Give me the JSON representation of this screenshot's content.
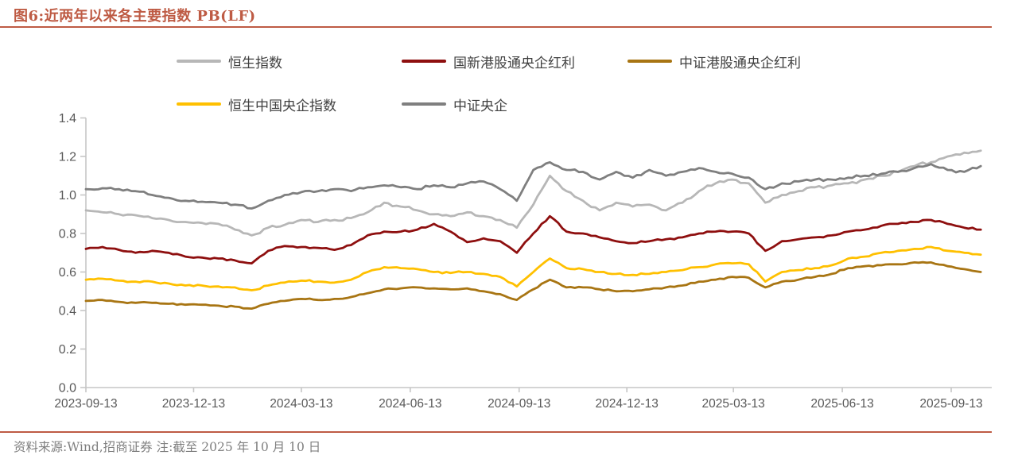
{
  "title": "图6:近两年以来各主要指数 PB(LF)",
  "source_note": "资料来源:Wind,招商证券  注:截至 2025 年 10 月 10 日",
  "colors": {
    "accent": "#BE5B44",
    "axis_line": "#C6C6C6",
    "tick_label": "#595959",
    "legend_text": "#3F3F3F",
    "footer_text": "#7F7F7F"
  },
  "chart_data": {
    "type": "line",
    "title": "近两年以来各主要指数 PB(LF)",
    "xlabel": "",
    "ylabel": "",
    "ylim": [
      0.0,
      1.4
    ],
    "y_ticks": [
      0.0,
      0.2,
      0.4,
      0.6,
      0.8,
      1.0,
      1.2,
      1.4
    ],
    "grid": false,
    "legend_position": "top",
    "x_unit": "days since 2023-09-13",
    "x_range_days": [
      0,
      756
    ],
    "x_ticks": [
      {
        "t": 0,
        "label": "2023-09-13"
      },
      {
        "t": 91,
        "label": "2023-12-13"
      },
      {
        "t": 182,
        "label": "2024-03-13"
      },
      {
        "t": 274,
        "label": "2024-06-13"
      },
      {
        "t": 366,
        "label": "2024-09-13"
      },
      {
        "t": 457,
        "label": "2024-12-13"
      },
      {
        "t": 547,
        "label": "2025-03-13"
      },
      {
        "t": 639,
        "label": "2025-06-13"
      },
      {
        "t": 731,
        "label": "2025-09-13"
      }
    ],
    "x_days": [
      0,
      14,
      28,
      42,
      56,
      70,
      84,
      98,
      112,
      126,
      140,
      154,
      168,
      182,
      196,
      210,
      224,
      238,
      252,
      266,
      280,
      294,
      308,
      322,
      336,
      350,
      364,
      378,
      392,
      406,
      420,
      434,
      448,
      462,
      476,
      490,
      504,
      518,
      532,
      546,
      560,
      574,
      588,
      602,
      616,
      630,
      644,
      658,
      672,
      686,
      700,
      714,
      728,
      742,
      756
    ],
    "series": [
      {
        "name": "恒生指数",
        "color": "#B7B7B7",
        "values": [
          0.92,
          0.91,
          0.9,
          0.895,
          0.88,
          0.87,
          0.86,
          0.855,
          0.85,
          0.82,
          0.79,
          0.83,
          0.845,
          0.87,
          0.86,
          0.87,
          0.88,
          0.91,
          0.96,
          0.94,
          0.92,
          0.9,
          0.89,
          0.91,
          0.89,
          0.87,
          0.83,
          0.95,
          1.1,
          1.02,
          0.97,
          0.92,
          0.96,
          0.94,
          0.95,
          0.92,
          0.96,
          1.02,
          1.06,
          1.08,
          1.06,
          0.96,
          1.0,
          1.02,
          1.04,
          1.05,
          1.06,
          1.08,
          1.1,
          1.12,
          1.15,
          1.17,
          1.2,
          1.22,
          1.23
        ]
      },
      {
        "name": "国新港股通央企红利",
        "color": "#8E0F0F",
        "values": [
          0.72,
          0.73,
          0.715,
          0.7,
          0.71,
          0.7,
          0.68,
          0.675,
          0.67,
          0.66,
          0.645,
          0.71,
          0.735,
          0.73,
          0.725,
          0.715,
          0.74,
          0.79,
          0.81,
          0.81,
          0.82,
          0.85,
          0.81,
          0.755,
          0.775,
          0.76,
          0.7,
          0.8,
          0.89,
          0.81,
          0.8,
          0.78,
          0.76,
          0.75,
          0.76,
          0.77,
          0.78,
          0.8,
          0.81,
          0.81,
          0.8,
          0.71,
          0.76,
          0.77,
          0.78,
          0.79,
          0.81,
          0.82,
          0.84,
          0.85,
          0.86,
          0.87,
          0.85,
          0.83,
          0.82
        ]
      },
      {
        "name": "中证港股通央企红利",
        "color": "#A87513",
        "values": [
          0.45,
          0.455,
          0.445,
          0.44,
          0.44,
          0.435,
          0.43,
          0.43,
          0.425,
          0.42,
          0.41,
          0.435,
          0.45,
          0.46,
          0.455,
          0.46,
          0.47,
          0.49,
          0.51,
          0.515,
          0.52,
          0.515,
          0.51,
          0.515,
          0.5,
          0.485,
          0.455,
          0.51,
          0.56,
          0.52,
          0.52,
          0.51,
          0.5,
          0.5,
          0.51,
          0.52,
          0.53,
          0.55,
          0.56,
          0.575,
          0.57,
          0.52,
          0.55,
          0.56,
          0.575,
          0.59,
          0.62,
          0.63,
          0.635,
          0.64,
          0.65,
          0.65,
          0.63,
          0.615,
          0.6
        ]
      },
      {
        "name": "恒生中国央企指数",
        "color": "#FFC000",
        "values": [
          0.56,
          0.565,
          0.555,
          0.55,
          0.55,
          0.54,
          0.53,
          0.53,
          0.525,
          0.52,
          0.505,
          0.53,
          0.545,
          0.555,
          0.55,
          0.545,
          0.56,
          0.6,
          0.625,
          0.62,
          0.615,
          0.6,
          0.595,
          0.6,
          0.59,
          0.575,
          0.525,
          0.6,
          0.67,
          0.62,
          0.615,
          0.6,
          0.59,
          0.585,
          0.59,
          0.6,
          0.61,
          0.625,
          0.64,
          0.645,
          0.64,
          0.55,
          0.6,
          0.61,
          0.62,
          0.635,
          0.67,
          0.68,
          0.7,
          0.71,
          0.72,
          0.73,
          0.71,
          0.7,
          0.69
        ]
      },
      {
        "name": "中证央企",
        "color": "#7F7F7F",
        "values": [
          1.03,
          1.035,
          1.03,
          1.02,
          1.0,
          0.985,
          0.97,
          0.965,
          0.96,
          0.95,
          0.93,
          0.97,
          1.0,
          1.015,
          1.02,
          1.03,
          1.02,
          1.04,
          1.05,
          1.04,
          1.03,
          1.05,
          1.04,
          1.06,
          1.07,
          1.03,
          0.97,
          1.13,
          1.17,
          1.13,
          1.12,
          1.08,
          1.12,
          1.09,
          1.13,
          1.1,
          1.12,
          1.14,
          1.12,
          1.11,
          1.09,
          1.03,
          1.06,
          1.07,
          1.08,
          1.08,
          1.09,
          1.1,
          1.11,
          1.12,
          1.14,
          1.16,
          1.13,
          1.12,
          1.15
        ]
      }
    ]
  }
}
